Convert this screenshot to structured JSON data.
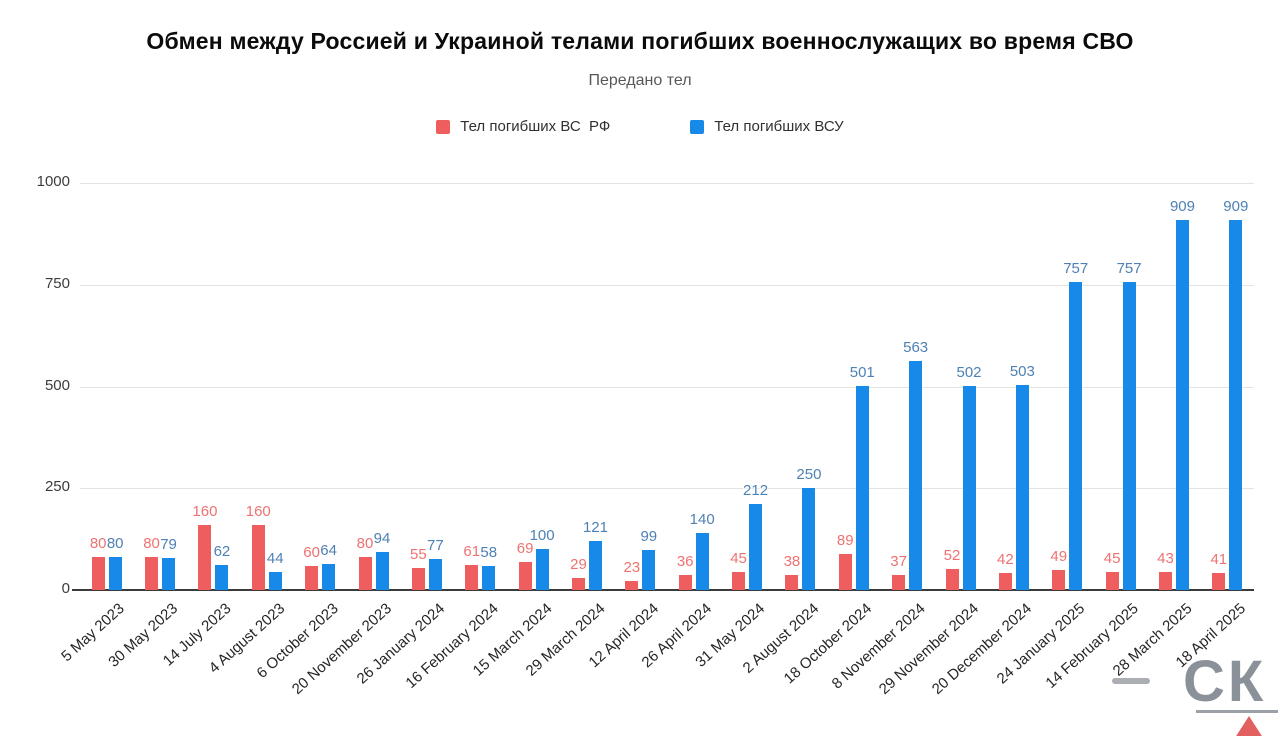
{
  "title": "Обмен между Россией и Украиной телами погибших военнослужащих во время СВО",
  "subtitle": "Передано тел",
  "watermark": {
    "letters": "СК"
  },
  "colors": {
    "grid": "#e3e3e3",
    "axis": "#3b3b3b",
    "rf_bar": "#ee5e5e",
    "vsu_bar": "#1789e9",
    "rf_label": "#ee7272",
    "vsu_label": "#4e81b4"
  },
  "yaxis": {
    "ticks": [
      "0",
      "250",
      "500",
      "750",
      "1000"
    ]
  },
  "chart_data": {
    "type": "bar",
    "title": "Обмен между Россией и Украиной телами погибших военнослужащих во время СВО",
    "subtitle": "Передано тел",
    "categories": [
      "5 May 2023",
      "30 May 2023",
      "14 July 2023",
      "4 August 2023",
      "6 October 2023",
      "20 November 2023",
      "26 January 2024",
      "16 February 2024",
      "15 March 2024",
      "29 March 2024",
      "12 April 2024",
      "26 April 2024",
      "31 May 2024",
      "2 August 2024",
      "18 October 2024",
      "8 November 2024",
      "29 November 2024",
      "20 December 2024",
      "24 January 2025",
      "14 February 2025",
      "28 March 2025",
      "18 April 2025"
    ],
    "series": [
      {
        "name": "Тел погибших ВС  РФ",
        "color": "#ee5e5e",
        "label_color": "#ee7272",
        "values": [
          80,
          80,
          160,
          160,
          60,
          80,
          55,
          61,
          69,
          29,
          23,
          36,
          45,
          38,
          89,
          37,
          52,
          42,
          49,
          45,
          43,
          41
        ]
      },
      {
        "name": "Тел погибших ВСУ",
        "color": "#1789e9",
        "label_color": "#4e81b4",
        "values": [
          80,
          79,
          62,
          44,
          64,
          94,
          77,
          58,
          100,
          121,
          99,
          140,
          212,
          250,
          501,
          563,
          502,
          503,
          757,
          757,
          909,
          909
        ]
      }
    ],
    "xlabel": "",
    "ylabel": "",
    "ylim": [
      0,
      1000
    ],
    "yticks": [
      0,
      250,
      500,
      750,
      1000
    ],
    "grid": true,
    "legend_position": "top",
    "x_label_rotation": -42
  }
}
